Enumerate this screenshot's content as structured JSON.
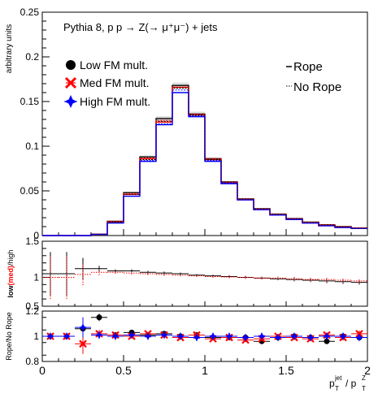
{
  "chart_data": [
    {
      "type": "line",
      "panel": "main",
      "title": "Pythia 8, p p → Z(→ μ⁺μ⁻) + jets",
      "ylabel": "arbitrary units",
      "xlabel": "",
      "xlim": [
        0,
        2
      ],
      "ylim": [
        0,
        0.25
      ],
      "yticks": [
        "0",
        "0.05",
        "0.1",
        "0.15",
        "0.2",
        "0.25"
      ],
      "legend": {
        "markers": [
          "Low FM mult.",
          "Med FM mult.",
          "High FM mult."
        ],
        "styles": [
          "Rope",
          "No Rope"
        ],
        "placement": "top"
      },
      "bin_edges": [
        0,
        0.1,
        0.2,
        0.3,
        0.4,
        0.5,
        0.6,
        0.7,
        0.8,
        0.9,
        1.0,
        1.1,
        1.2,
        1.3,
        1.4,
        1.5,
        1.6,
        1.7,
        1.8,
        1.9,
        2.0
      ],
      "series": [
        {
          "name": "Low FM mult.",
          "style": "Rope",
          "color": "#000000",
          "values": [
            0.0,
            0.0,
            0.0,
            0.0015,
            0.016,
            0.048,
            0.088,
            0.131,
            0.168,
            0.136,
            0.086,
            0.06,
            0.041,
            0.03,
            0.024,
            0.019,
            0.015,
            0.012,
            0.01,
            0.0085
          ]
        },
        {
          "name": "Med FM mult.",
          "style": "Rope",
          "color": "#ff0000",
          "values": [
            0.0,
            0.0,
            0.0,
            0.0014,
            0.015,
            0.046,
            0.086,
            0.127,
            0.166,
            0.135,
            0.085,
            0.059,
            0.04,
            0.029,
            0.023,
            0.018,
            0.014,
            0.011,
            0.009,
            0.008
          ]
        },
        {
          "name": "High FM mult.",
          "style": "Rope",
          "color": "#0000ff",
          "values": [
            0.0,
            0.0,
            0.0,
            0.0013,
            0.014,
            0.044,
            0.083,
            0.124,
            0.16,
            0.133,
            0.083,
            0.058,
            0.04,
            0.029,
            0.023,
            0.018,
            0.014,
            0.011,
            0.009,
            0.008
          ]
        },
        {
          "name": "Low FM mult.",
          "style": "No Rope",
          "color": "#000000",
          "values": [
            0.0,
            0.0,
            0.0,
            0.0013,
            0.015,
            0.046,
            0.085,
            0.128,
            0.165,
            0.135,
            0.085,
            0.06,
            0.041,
            0.03,
            0.024,
            0.019,
            0.015,
            0.012,
            0.01,
            0.0085
          ]
        },
        {
          "name": "Med FM mult.",
          "style": "No Rope",
          "color": "#ff0000",
          "values": [
            0.0,
            0.0,
            0.0,
            0.0015,
            0.016,
            0.047,
            0.087,
            0.129,
            0.166,
            0.136,
            0.086,
            0.06,
            0.041,
            0.03,
            0.024,
            0.019,
            0.015,
            0.012,
            0.01,
            0.0085
          ]
        },
        {
          "name": "High FM mult.",
          "style": "No Rope",
          "color": "#0000ff",
          "values": [
            0.0,
            0.0,
            0.0,
            0.0013,
            0.014,
            0.044,
            0.084,
            0.125,
            0.163,
            0.134,
            0.084,
            0.059,
            0.04,
            0.029,
            0.023,
            0.018,
            0.014,
            0.011,
            0.009,
            0.008
          ]
        }
      ]
    },
    {
      "type": "scatter",
      "panel": "ratio-mult",
      "ylabel": [
        "low",
        "(med)",
        "/high"
      ],
      "ylim": [
        0.6,
        1.5
      ],
      "yticks": [
        "0.5",
        "1",
        "1.5"
      ],
      "x": [
        0.05,
        0.15,
        0.25,
        0.35,
        0.45,
        0.55,
        0.65,
        0.75,
        0.85,
        0.95,
        1.05,
        1.15,
        1.25,
        1.35,
        1.45,
        1.55,
        1.65,
        1.75,
        1.85,
        1.95
      ],
      "series": [
        {
          "name": "Low FM mult.",
          "color": "#000000",
          "values": [
            1.05,
            1.05,
            1.12,
            1.12,
            1.09,
            1.09,
            1.07,
            1.06,
            1.05,
            1.03,
            1.02,
            1.01,
            1.0,
            0.99,
            0.98,
            0.97,
            0.96,
            0.95,
            0.94,
            0.93
          ]
        },
        {
          "name": "Med FM mult.",
          "color": "#ff0000",
          "values": [
            1.0,
            1.0,
            1.04,
            1.07,
            1.07,
            1.06,
            1.05,
            1.04,
            1.03,
            1.02,
            1.01,
            1.005,
            1.0,
            0.99,
            0.99,
            0.98,
            0.97,
            0.97,
            0.96,
            0.95
          ]
        }
      ],
      "yerr": [
        0.3,
        0.3,
        0.15,
        0.04,
        0.02,
        0.02,
        0.02,
        0.02,
        0.015,
        0.015,
        0.015,
        0.02,
        0.02,
        0.02,
        0.02,
        0.025,
        0.025,
        0.03,
        0.03,
        0.03
      ]
    },
    {
      "type": "scatter",
      "panel": "ratio-rope",
      "ylabel": "Rope/No Rope",
      "xlabel": "p_T^jet / p_T^Z",
      "xlim": [
        0,
        2
      ],
      "ylim": [
        0.8,
        1.2
      ],
      "xticks": [
        "0",
        "0.5",
        "1",
        "1.5",
        "2"
      ],
      "yticks": [
        "0.8",
        "1",
        "1.2"
      ],
      "x": [
        0.05,
        0.15,
        0.25,
        0.35,
        0.45,
        0.55,
        0.65,
        0.75,
        0.85,
        0.95,
        1.05,
        1.15,
        1.25,
        1.35,
        1.45,
        1.55,
        1.65,
        1.75,
        1.85,
        1.95
      ],
      "series": [
        {
          "name": "Low FM mult.",
          "color": "#000000",
          "values": [
            1.0,
            1.0,
            1.06,
            1.15,
            1.01,
            1.03,
            1.01,
            1.02,
            1.0,
            1.01,
            0.99,
            0.99,
            0.99,
            0.96,
            0.99,
            1.0,
            0.99,
            0.96,
            1.0,
            0.99
          ]
        },
        {
          "name": "Med FM mult.",
          "color": "#ff0000",
          "values": [
            1.0,
            1.0,
            0.94,
            1.02,
            1.01,
            1.0,
            1.02,
            1.01,
            0.99,
            1.01,
            0.98,
            0.99,
            0.97,
            0.98,
            1.0,
            0.99,
            0.98,
            1.01,
            0.99,
            1.02
          ]
        },
        {
          "name": "High FM mult.",
          "color": "#0000ff",
          "values": [
            1.0,
            1.0,
            1.07,
            1.01,
            1.0,
            1.01,
            1.0,
            1.01,
            1.0,
            0.99,
            1.0,
            1.0,
            0.99,
            1.0,
            0.99,
            1.0,
            0.99,
            1.0,
            1.0,
            0.99
          ]
        }
      ],
      "yerr": [
        0.02,
        0.02,
        0.08,
        0.03,
        0.015,
        0.01,
        0.01,
        0.01,
        0.01,
        0.01,
        0.01,
        0.01,
        0.015,
        0.015,
        0.015,
        0.02,
        0.02,
        0.02,
        0.025,
        0.025
      ]
    }
  ],
  "axis_text": {
    "x_label_main": "p",
    "x_label_num_sup": "jet",
    "x_label_num_sub": "T",
    "x_label_slash": " / p",
    "x_label_den_sup": "Z",
    "x_label_den_sub": "T"
  }
}
